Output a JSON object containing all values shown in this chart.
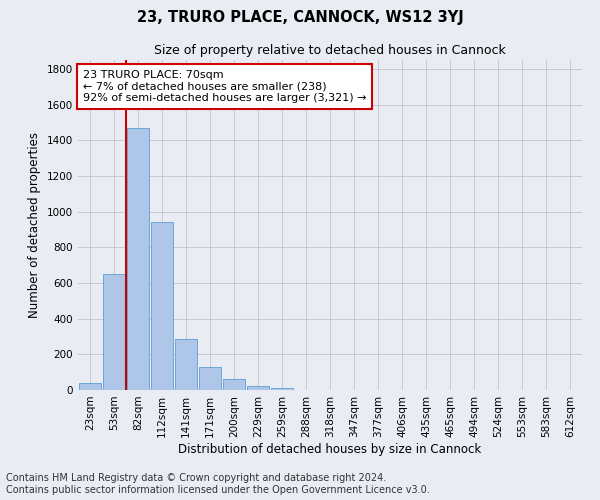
{
  "title": "23, TRURO PLACE, CANNOCK, WS12 3YJ",
  "subtitle": "Size of property relative to detached houses in Cannock",
  "xlabel": "Distribution of detached houses by size in Cannock",
  "ylabel": "Number of detached properties",
  "categories": [
    "23sqm",
    "53sqm",
    "82sqm",
    "112sqm",
    "141sqm",
    "171sqm",
    "200sqm",
    "229sqm",
    "259sqm",
    "288sqm",
    "318sqm",
    "347sqm",
    "377sqm",
    "406sqm",
    "435sqm",
    "465sqm",
    "494sqm",
    "524sqm",
    "553sqm",
    "583sqm",
    "612sqm"
  ],
  "values": [
    38,
    648,
    1470,
    940,
    285,
    128,
    62,
    22,
    12,
    0,
    0,
    0,
    0,
    0,
    0,
    0,
    0,
    0,
    0,
    0,
    0
  ],
  "bar_color": "#aec6e8",
  "bar_edgecolor": "#5a9fd4",
  "grid_color": "#c8c8d0",
  "background_color": "#eaecf4",
  "vline_color": "#cc0000",
  "annotation_text": "23 TRURO PLACE: 70sqm\n← 7% of detached houses are smaller (238)\n92% of semi-detached houses are larger (3,321) →",
  "annotation_box_edgecolor": "#cc0000",
  "annotation_box_facecolor": "#ffffff",
  "ylim": [
    0,
    1850
  ],
  "yticks": [
    0,
    200,
    400,
    600,
    800,
    1000,
    1200,
    1400,
    1600,
    1800
  ],
  "footer1": "Contains HM Land Registry data © Crown copyright and database right 2024.",
  "footer2": "Contains public sector information licensed under the Open Government Licence v3.0.",
  "title_fontsize": 10.5,
  "subtitle_fontsize": 9,
  "axis_label_fontsize": 8.5,
  "tick_fontsize": 7.5,
  "annotation_fontsize": 8,
  "footer_fontsize": 7
}
